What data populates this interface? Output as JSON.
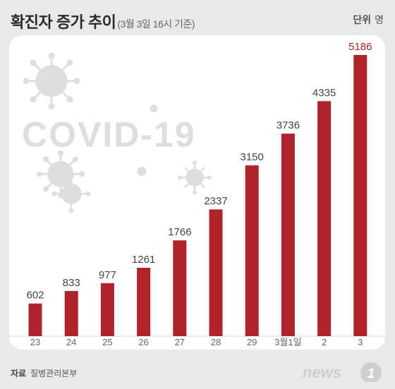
{
  "header": {
    "title": "확진자 증가 추이",
    "subtitle": "(3월 3일 16시 기준)",
    "unit_label": "단위",
    "unit_value": "명"
  },
  "watermark": {
    "text": "COVID-19"
  },
  "footer": {
    "source_label": "자료",
    "source_value": "질병관리본부",
    "logo_text": "news 1"
  },
  "colors": {
    "bar": "#b0232a",
    "highlight_label": "#b0232a",
    "label": "#444444",
    "watermark": "#d8d8d8"
  },
  "chart_data": {
    "type": "bar",
    "title": "확진자 증가 추이",
    "subtitle": "(3월 3일 16시 기준)",
    "xlabel": "",
    "ylabel": "",
    "unit": "명",
    "categories": [
      "23",
      "24",
      "25",
      "26",
      "27",
      "28",
      "29",
      "3월1일",
      "2",
      "3"
    ],
    "values": [
      602,
      833,
      977,
      1261,
      1766,
      2337,
      3150,
      3736,
      4335,
      5186
    ],
    "ylim": [
      0,
      5186
    ],
    "grid": false,
    "legend": "none"
  }
}
